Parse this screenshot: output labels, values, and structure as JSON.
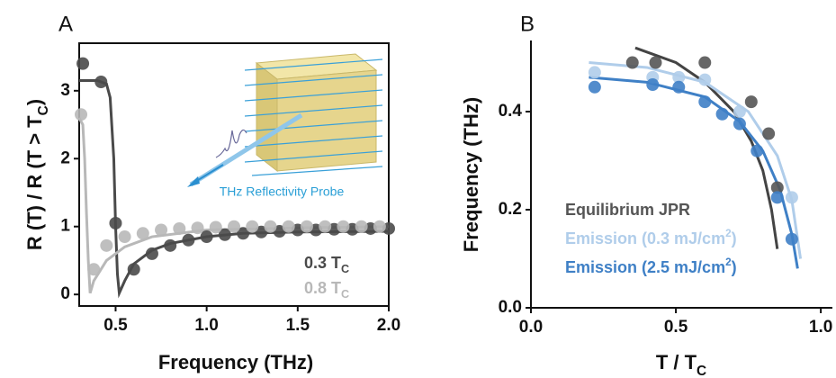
{
  "chart_data": [
    {
      "type": "scatter",
      "panel": "A",
      "x_label": "Frequency (THz)",
      "y_label": "R (T) / R (T > T",
      "y_label_subscript": "C",
      "y_label_end": ")",
      "annotation": "THz Reflectivity Probe",
      "xlim": [
        0.3,
        2.0
      ],
      "ylim": [
        -0.17,
        3.7
      ],
      "xticks": [
        0.5,
        {
          "value": 1.0,
          "label": "1.0"
        },
        1.5,
        {
          "value": 2.0,
          "label": "2.0"
        }
      ],
      "yticks": [
        0,
        1,
        2,
        3
      ],
      "series": [
        {
          "name": "0.3 T",
          "name_subscript": "C",
          "color": "#4a4a4a",
          "mode": "markers",
          "x": [
            0.32,
            0.42,
            0.5,
            0.6,
            0.7,
            0.8,
            0.9,
            1.0,
            1.1,
            1.2,
            1.3,
            1.4,
            1.5,
            1.6,
            1.7,
            1.8,
            1.9,
            2.0
          ],
          "values": [
            3.4,
            3.13,
            1.05,
            0.37,
            0.6,
            0.72,
            0.8,
            0.85,
            0.88,
            0.9,
            0.92,
            0.93,
            0.95,
            0.95,
            0.96,
            0.96,
            0.97,
            0.97
          ]
        },
        {
          "name": "0.8 T",
          "name_subscript": "C",
          "color": "#b8b8b8",
          "mode": "markers",
          "x": [
            0.31,
            0.38,
            0.45,
            0.55,
            0.65,
            0.75,
            0.85,
            0.95,
            1.05,
            1.15,
            1.25,
            1.35,
            1.45,
            1.55,
            1.65,
            1.75,
            1.85,
            1.95
          ],
          "values": [
            2.65,
            0.37,
            0.72,
            0.85,
            0.9,
            0.95,
            0.97,
            0.98,
            0.99,
            1.0,
            1.0,
            1.0,
            1.0,
            1.0,
            1.0,
            1.0,
            1.0,
            1.0
          ]
        },
        {
          "color": "#4a4a4a",
          "mode": "line",
          "x": [
            0.3,
            0.4,
            0.45,
            0.47,
            0.49,
            0.5,
            0.51,
            0.52,
            0.55,
            0.6,
            0.7,
            0.8,
            1.0,
            1.2,
            1.5,
            2.0
          ],
          "values": [
            3.15,
            3.15,
            3.1,
            2.9,
            2.0,
            1.0,
            0.3,
            0.02,
            0.2,
            0.45,
            0.65,
            0.75,
            0.85,
            0.9,
            0.92,
            0.93
          ]
        },
        {
          "color": "#b8b8b8",
          "mode": "line",
          "x": [
            0.3,
            0.32,
            0.33,
            0.34,
            0.35,
            0.36,
            0.38,
            0.45,
            0.55,
            0.7,
            1.0,
            1.5,
            2.0
          ],
          "values": [
            2.6,
            2.5,
            2.0,
            1.2,
            0.5,
            0.02,
            0.2,
            0.5,
            0.7,
            0.85,
            0.95,
            0.98,
            1.0
          ]
        }
      ]
    },
    {
      "type": "scatter",
      "panel": "B",
      "x_label": "T / T",
      "x_label_subscript": "C",
      "y_label": "Frequency (THz)",
      "xlim": [
        0,
        1.04
      ],
      "ylim": [
        0,
        0.545
      ],
      "xticks": [
        {
          "value": 0,
          "label": "0.0"
        },
        0.5,
        {
          "value": 1.0,
          "label": "1.0"
        }
      ],
      "yticks": [
        {
          "value": 0,
          "label": "0.0"
        },
        0.2,
        0.4
      ],
      "series": [
        {
          "name": "Equilibrium JPR",
          "color": "#555555",
          "mode": "markers",
          "x": [
            0.35,
            0.43,
            0.6,
            0.76,
            0.82,
            0.85
          ],
          "values": [
            0.5,
            0.5,
            0.5,
            0.42,
            0.355,
            0.245
          ]
        },
        {
          "name": "Emission (0.3 mJ/cm",
          "name_superscript": "2",
          "name_end": ")",
          "color": "#b0cdea",
          "mode": "markers",
          "x": [
            0.22,
            0.42,
            0.51,
            0.6,
            0.72,
            0.9
          ],
          "values": [
            0.48,
            0.47,
            0.47,
            0.465,
            0.4,
            0.225
          ]
        },
        {
          "name": "Emission (2.5 mJ/cm",
          "name_superscript": "2",
          "name_end": ")",
          "color": "#3f80c6",
          "mode": "markers",
          "x": [
            0.22,
            0.42,
            0.51,
            0.6,
            0.66,
            0.72,
            0.78,
            0.85,
            0.9
          ],
          "values": [
            0.45,
            0.455,
            0.45,
            0.42,
            0.395,
            0.375,
            0.32,
            0.225,
            0.14
          ]
        },
        {
          "color": "#444444",
          "mode": "line",
          "x": [
            0.36,
            0.5,
            0.6,
            0.7,
            0.76,
            0.8,
            0.83,
            0.85
          ],
          "values": [
            0.53,
            0.5,
            0.46,
            0.4,
            0.34,
            0.28,
            0.2,
            0.12
          ]
        },
        {
          "color": "#b0cdea",
          "mode": "line",
          "x": [
            0.2,
            0.4,
            0.6,
            0.75,
            0.85,
            0.9,
            0.93
          ],
          "values": [
            0.5,
            0.49,
            0.46,
            0.4,
            0.31,
            0.22,
            0.1
          ]
        },
        {
          "color": "#3f80c6",
          "mode": "line",
          "x": [
            0.2,
            0.4,
            0.6,
            0.72,
            0.8,
            0.86,
            0.9,
            0.92
          ],
          "values": [
            0.47,
            0.46,
            0.43,
            0.38,
            0.32,
            0.24,
            0.15,
            0.08
          ]
        }
      ]
    }
  ]
}
